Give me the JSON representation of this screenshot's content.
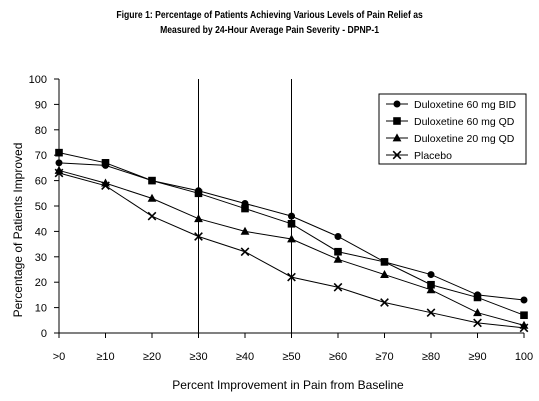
{
  "title_line1": "Figure 1: Percentage of Patients Achieving Various Levels of Pain Relief as",
  "title_line2": "Measured by 24-Hour Average Pain Severity - DPNP-1",
  "chart_data": {
    "type": "line",
    "xlabel": "Percent Improvement in Pain from Baseline",
    "ylabel": "Percentage of Patients Improved",
    "categories": [
      ">0",
      "≥10",
      "≥20",
      "≥30",
      "≥40",
      "≥50",
      "≥60",
      "≥70",
      "≥80",
      "≥90",
      "100"
    ],
    "yticks": [
      "0",
      "10",
      "20",
      "30",
      "40",
      "50",
      "60",
      "70",
      "80",
      "90",
      "100"
    ],
    "ylim": [
      0,
      100
    ],
    "reference_lines_at": [
      "≥30",
      "≥50"
    ],
    "legend_position": "top-right",
    "series": [
      {
        "name": "Duloxetine 60 mg BID",
        "marker": "circle",
        "values": [
          67,
          66,
          60,
          56,
          51,
          46,
          38,
          28,
          23,
          15,
          13
        ]
      },
      {
        "name": "Duloxetine 60 mg QD",
        "marker": "square",
        "values": [
          71,
          67,
          60,
          55,
          49,
          43,
          32,
          28,
          19,
          14,
          7
        ]
      },
      {
        "name": "Duloxetine 20 mg QD",
        "marker": "triangle",
        "values": [
          64,
          59,
          53,
          45,
          40,
          37,
          29,
          23,
          17,
          8,
          3
        ]
      },
      {
        "name": "Placebo",
        "marker": "x",
        "values": [
          63,
          58,
          46,
          38,
          32,
          22,
          18,
          12,
          8,
          4,
          2
        ]
      }
    ]
  }
}
